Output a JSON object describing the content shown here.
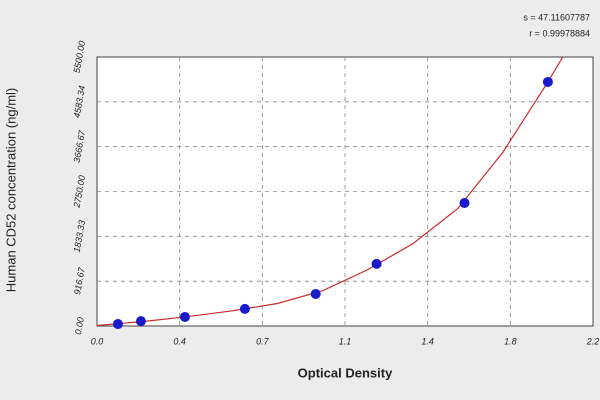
{
  "chart_data": {
    "type": "scatter",
    "annotations": [
      "s = 47.11607787",
      "r = 0.99978884"
    ],
    "x_label": "Optical Density",
    "y_label": "Human CD52 concentration (ng/ml)",
    "xlim": [
      0,
      2.2
    ],
    "xticks": [
      {
        "value": 0,
        "label": "0.0"
      },
      {
        "value": 0.3667,
        "label": "0.4"
      },
      {
        "value": 0.7333,
        "label": "0.7"
      },
      {
        "value": 1.1,
        "label": "1.1"
      },
      {
        "value": 1.4667,
        "label": "1.4"
      },
      {
        "value": 1.8333,
        "label": "1.8"
      },
      {
        "value": 2.2,
        "label": "2.2"
      }
    ],
    "ylim": [
      0,
      5500
    ],
    "yticks": [
      {
        "value": 0,
        "label": "0.00"
      },
      {
        "value": 916.67,
        "label": "916.67"
      },
      {
        "value": 1833.33,
        "label": "1833.33"
      },
      {
        "value": 2750,
        "label": "2750.00"
      },
      {
        "value": 3666.67,
        "label": "3666.67"
      },
      {
        "value": 4583.34,
        "label": "4583.34"
      },
      {
        "value": 5500,
        "label": "5500.00"
      }
    ],
    "grid": true,
    "series": [
      {
        "color": "#1a1acc",
        "x": [
          0.093,
          0.195,
          0.39,
          0.656,
          0.97,
          1.24,
          1.63,
          2.0
        ],
        "values": [
          40,
          100,
          185,
          350,
          655,
          1270,
          2515,
          4990
        ]
      }
    ],
    "fit": {
      "color": "#cc2a2a",
      "x": [
        0,
        0.2,
        0.4,
        0.6,
        0.8,
        1.0,
        1.2,
        1.4,
        1.6,
        1.8,
        2.0,
        2.066
      ],
      "values": [
        10,
        90,
        190,
        310,
        460,
        720,
        1150,
        1680,
        2400,
        3550,
        4990,
        5500
      ]
    }
  }
}
